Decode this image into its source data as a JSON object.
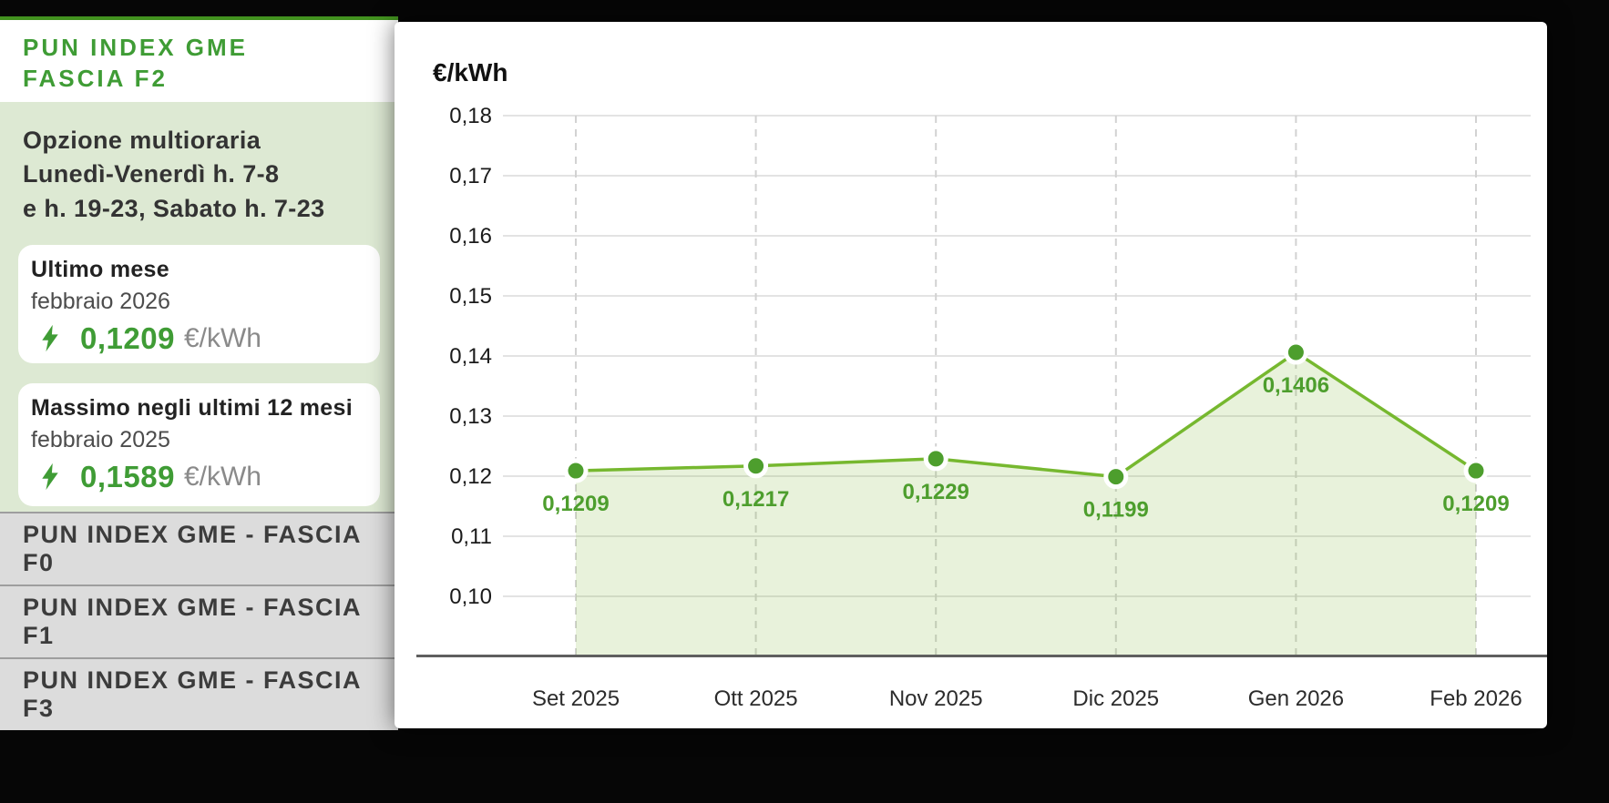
{
  "sidebar": {
    "title_line1": "PUN INDEX GME",
    "title_line2": "FASCIA F2",
    "description_lines": [
      "Opzione multioraria",
      "Lunedì-Venerdì h. 7-8",
      "e h. 19-23, Sabato h. 7-23"
    ],
    "cards": [
      {
        "title": "Ultimo mese",
        "period": "febbraio 2026",
        "value": "0,1209",
        "unit": "€/kWh"
      },
      {
        "title": "Massimo negli ultimi 12 mesi",
        "period": "febbraio 2025",
        "value": "0,1589",
        "unit": "€/kWh"
      }
    ],
    "nav_items": [
      {
        "label": "PUN INDEX GME - FASCIA F0"
      },
      {
        "label": "PUN INDEX GME - FASCIA F1"
      },
      {
        "label": "PUN INDEX GME - FASCIA F3"
      }
    ]
  },
  "chart_data": {
    "type": "area",
    "title": "€/kWh",
    "categories": [
      "Set 2025",
      "Ott 2025",
      "Nov 2025",
      "Dic 2025",
      "Gen 2026",
      "Feb 2026"
    ],
    "values": [
      0.1209,
      0.1217,
      0.1229,
      0.1199,
      0.1406,
      0.1209
    ],
    "point_labels": [
      "0,1209",
      "0,1217",
      "0,1229",
      "0,1199",
      "0,1406",
      "0,1209"
    ],
    "y_ticks": [
      0.1,
      0.11,
      0.12,
      0.13,
      0.14,
      0.15,
      0.16,
      0.17,
      0.18
    ],
    "y_tick_labels": [
      "0,10",
      "0,11",
      "0,12",
      "0,13",
      "0,14",
      "0,15",
      "0,16",
      "0,17",
      "0,18"
    ],
    "ylim": [
      0.1,
      0.18
    ],
    "xlabel": "",
    "ylabel": "€/kWh",
    "grid": "horizontal solid, vertical dashed",
    "legend": "none",
    "colors": {
      "line": "#76b82f",
      "marker": "#4d9e2d",
      "marker_ring": "#ffffff",
      "area_fill": "rgba(125,184,53,0.18)",
      "point_label": "#4d9e2d",
      "gridline": "#e3e3e3",
      "dashed_gridline": "#d2d2d2",
      "axis_line": "#5f5f5f",
      "tick_text": "#1a1a1a",
      "month_text": "#2c2c2c"
    }
  },
  "theme": {
    "accent_green": "#3f9c35",
    "topline_green": "#42921f",
    "panel_green": "#dde9d3",
    "nav_gray": "#dcdcdc"
  }
}
